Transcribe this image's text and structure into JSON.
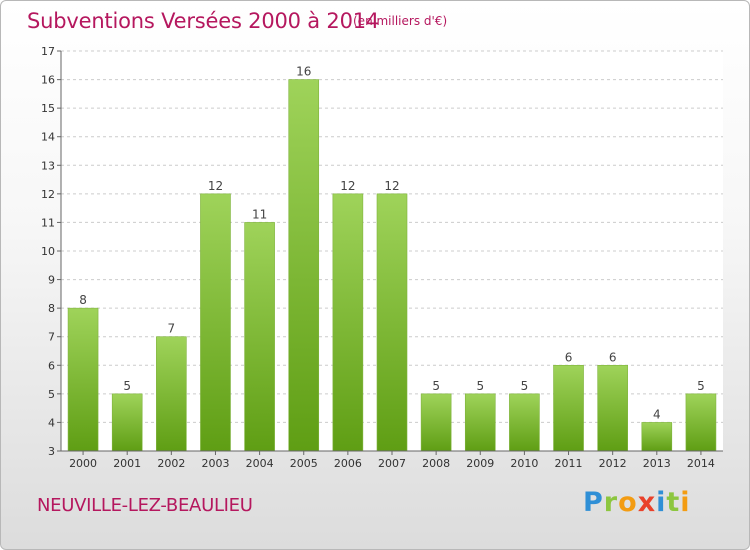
{
  "header": {
    "title": "Subventions Versées 2000 à 2014",
    "unit": "(en milliers d'€)"
  },
  "footer": {
    "commune": "NEUVILLE-LEZ-BEAULIEU",
    "logo_text": "Proxiti"
  },
  "colors": {
    "title": "#b5175e",
    "bar_light": "#9fd35a",
    "bar_dark": "#5f9e14",
    "plot_background": "#ffffff",
    "grid": "#cccccc"
  },
  "chart_data": {
    "type": "bar",
    "categories": [
      "2000",
      "2001",
      "2002",
      "2003",
      "2004",
      "2005",
      "2006",
      "2007",
      "2008",
      "2009",
      "2010",
      "2011",
      "2012",
      "2013",
      "2014"
    ],
    "values": [
      8,
      5,
      7,
      12,
      11,
      16,
      12,
      12,
      5,
      5,
      5,
      6,
      6,
      4,
      5
    ],
    "data_labels": [
      "8",
      "5",
      "7",
      "12",
      "11",
      "16",
      "12",
      "12",
      "5",
      "5",
      "5",
      "6",
      "6",
      "4",
      "5"
    ],
    "title": "Subventions Versées 2000 à 2014",
    "subtitle": "(en milliers d'€)",
    "xlabel": "",
    "ylabel": "",
    "ylim": [
      3,
      17
    ],
    "yticks": [
      3,
      4,
      5,
      6,
      7,
      8,
      9,
      10,
      11,
      12,
      13,
      14,
      15,
      16,
      17
    ],
    "grid": true,
    "legend": "none"
  }
}
